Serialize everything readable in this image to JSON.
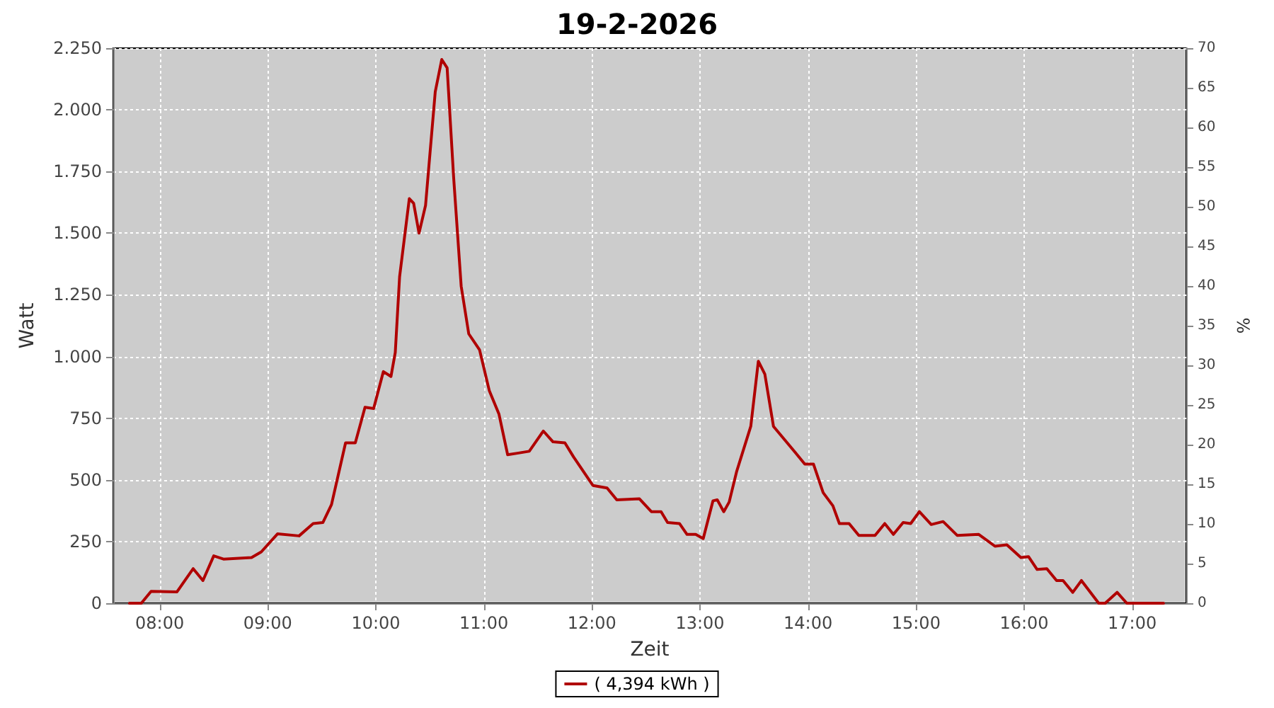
{
  "chart_data": {
    "type": "line",
    "title": "19-2-2026",
    "xlabel": "Zeit",
    "ylabel": "Watt",
    "y2label": "%",
    "x": [
      7.72,
      7.83,
      7.92,
      8.16,
      8.31,
      8.4,
      8.5,
      8.59,
      8.85,
      8.94,
      9.09,
      9.29,
      9.42,
      9.51,
      9.59,
      9.72,
      9.81,
      9.9,
      9.98,
      10.07,
      10.14,
      10.18,
      10.22,
      10.31,
      10.35,
      10.4,
      10.46,
      10.55,
      10.61,
      10.66,
      10.72,
      10.79,
      10.86,
      10.96,
      11.05,
      11.14,
      11.22,
      11.31,
      11.42,
      11.55,
      11.64,
      11.75,
      11.83,
      12.01,
      12.14,
      12.23,
      12.44,
      12.55,
      12.64,
      12.7,
      12.81,
      12.88,
      12.96,
      13.03,
      13.12,
      13.16,
      13.22,
      13.27,
      13.34,
      13.47,
      13.54,
      13.6,
      13.68,
      13.88,
      13.97,
      14.05,
      14.14,
      14.23,
      14.29,
      14.38,
      14.47,
      14.62,
      14.71,
      14.79,
      14.88,
      14.95,
      15.03,
      15.14,
      15.25,
      15.38,
      15.58,
      15.73,
      15.84,
      15.97,
      16.04,
      16.12,
      16.21,
      16.3,
      16.36,
      16.45,
      16.53,
      16.69,
      16.75,
      16.86,
      16.95,
      17.03,
      17.29
    ],
    "series": [
      {
        "name": "( 4,394 kWh )",
        "color": "#b00000",
        "values": [
          0,
          0,
          48,
          46,
          140,
          92,
          192,
          179,
          185,
          208,
          281,
          273,
          323,
          327,
          400,
          650,
          650,
          794,
          789,
          939,
          919,
          1016,
          1323,
          1640,
          1621,
          1500,
          1612,
          2073,
          2204,
          2170,
          1727,
          1285,
          1092,
          1027,
          862,
          766,
          602,
          608,
          616,
          698,
          654,
          650,
          593,
          477,
          467,
          419,
          423,
          371,
          371,
          327,
          323,
          279,
          279,
          262,
          415,
          419,
          371,
          410,
          535,
          717,
          981,
          929,
          717,
          612,
          564,
          564,
          448,
          395,
          323,
          323,
          275,
          275,
          323,
          279,
          327,
          323,
          371,
          319,
          331,
          275,
          279,
          231,
          237,
          185,
          189,
          137,
          140,
          92,
          92,
          44,
          92,
          0,
          0,
          44,
          0,
          0,
          0
        ]
      }
    ],
    "xlim": [
      7.57,
      17.5
    ],
    "xticks": [
      {
        "value": 8,
        "label": "08:00"
      },
      {
        "value": 9,
        "label": "09:00"
      },
      {
        "value": 10,
        "label": "10:00"
      },
      {
        "value": 11,
        "label": "11:00"
      },
      {
        "value": 12,
        "label": "12:00"
      },
      {
        "value": 13,
        "label": "13:00"
      },
      {
        "value": 14,
        "label": "14:00"
      },
      {
        "value": 15,
        "label": "15:00"
      },
      {
        "value": 16,
        "label": "16:00"
      },
      {
        "value": 17,
        "label": "17:00"
      }
    ],
    "ylim": [
      0,
      2250
    ],
    "yticks": [
      0,
      250,
      500,
      750,
      {
        "value": 1000,
        "label": "1.000"
      },
      {
        "value": 1250,
        "label": "1.250"
      },
      {
        "value": 1500,
        "label": "1.500"
      },
      {
        "value": 1750,
        "label": "1.750"
      },
      {
        "value": 2000,
        "label": "2.000"
      },
      {
        "value": 2250,
        "label": "2.250"
      }
    ],
    "y2lim": [
      0,
      70
    ],
    "y2ticks": [
      0,
      5,
      10,
      15,
      20,
      25,
      30,
      35,
      40,
      45,
      50,
      55,
      60,
      65,
      70
    ],
    "grid": true,
    "legend": "bottom",
    "marker": "none",
    "line_style": "solid"
  }
}
